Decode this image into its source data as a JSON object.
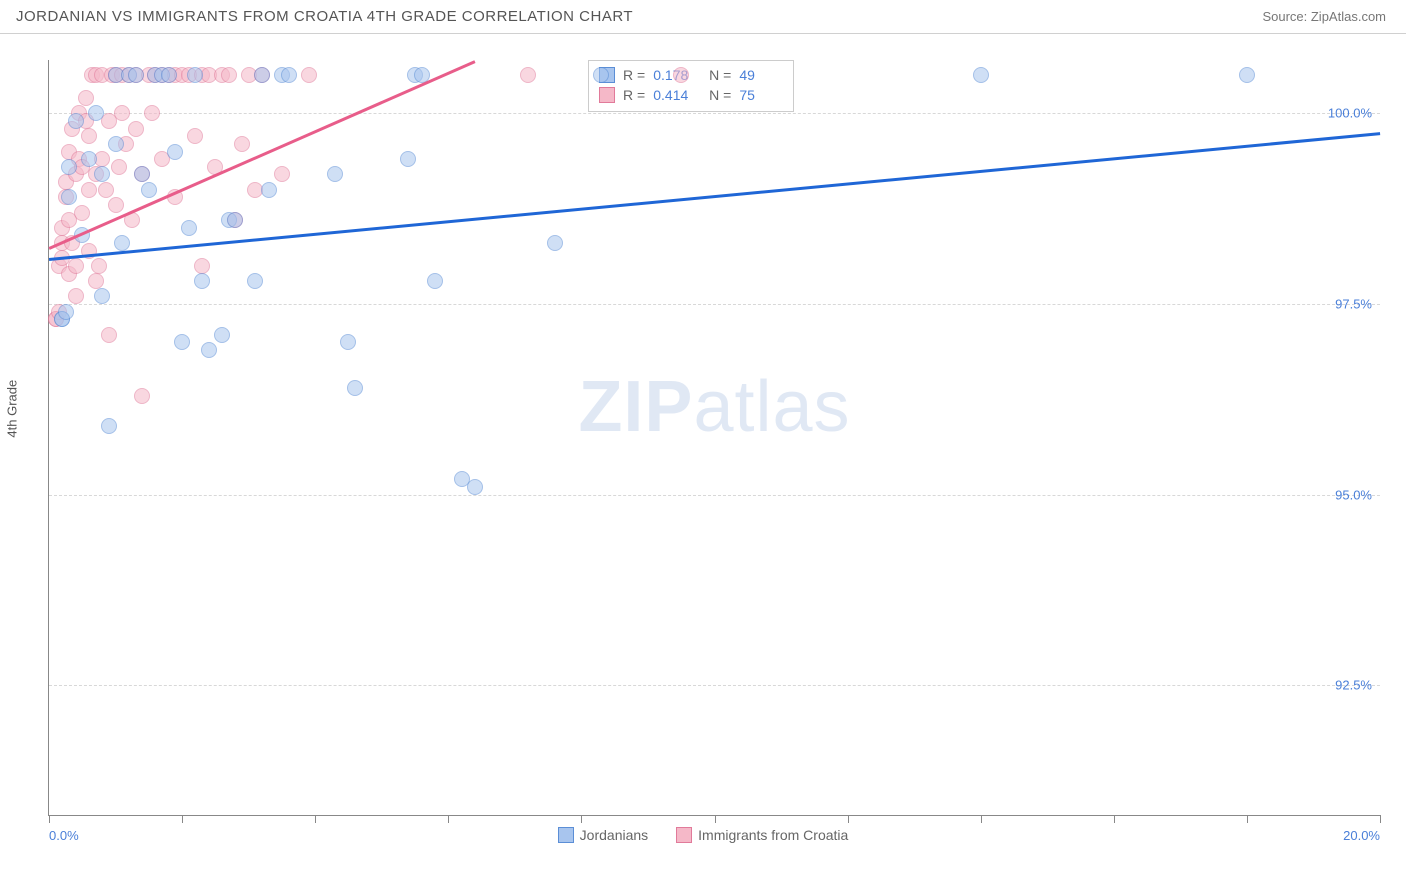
{
  "title": "JORDANIAN VS IMMIGRANTS FROM CROATIA 4TH GRADE CORRELATION CHART",
  "source": "Source: ZipAtlas.com",
  "ylabel": "4th Grade",
  "watermark": {
    "bold": "ZIP",
    "light": "atlas"
  },
  "chart": {
    "type": "scatter",
    "xlim": [
      0.0,
      20.0
    ],
    "ylim": [
      90.8,
      100.7
    ],
    "xticks_pos": [
      0,
      2,
      4,
      6,
      8,
      10,
      12,
      14,
      16,
      18,
      20
    ],
    "xlabels": [
      {
        "v": 0.0,
        "text": "0.0%",
        "align": "left"
      },
      {
        "v": 20.0,
        "text": "20.0%",
        "align": "right"
      }
    ],
    "ylabels": [
      {
        "v": 100.0,
        "text": "100.0%"
      },
      {
        "v": 97.5,
        "text": "97.5%"
      },
      {
        "v": 95.0,
        "text": "95.0%"
      },
      {
        "v": 92.5,
        "text": "92.5%"
      }
    ],
    "grid_color": "#d8d8d8",
    "background_color": "#ffffff",
    "marker_radius": 8,
    "marker_opacity": 0.55,
    "series": [
      {
        "name": "Jordanians",
        "color_fill": "#a8c5ee",
        "color_stroke": "#5b8ed6",
        "R": "0.178",
        "N": "49",
        "trend": {
          "x1": 0.0,
          "y1": 98.1,
          "x2": 20.0,
          "y2": 99.75,
          "color": "#1f66d6",
          "width": 2.5
        },
        "points": [
          [
            0.2,
            97.3
          ],
          [
            0.2,
            97.3
          ],
          [
            0.25,
            97.4
          ],
          [
            0.3,
            98.9
          ],
          [
            0.3,
            99.3
          ],
          [
            0.4,
            99.9
          ],
          [
            0.5,
            98.4
          ],
          [
            0.6,
            99.4
          ],
          [
            0.7,
            100.0
          ],
          [
            0.8,
            97.6
          ],
          [
            0.8,
            99.2
          ],
          [
            0.9,
            95.9
          ],
          [
            1.0,
            100.5
          ],
          [
            1.0,
            99.6
          ],
          [
            1.1,
            98.3
          ],
          [
            1.2,
            100.5
          ],
          [
            1.3,
            100.5
          ],
          [
            1.4,
            99.2
          ],
          [
            1.5,
            99.0
          ],
          [
            1.6,
            100.5
          ],
          [
            1.7,
            100.5
          ],
          [
            1.8,
            100.5
          ],
          [
            1.9,
            99.5
          ],
          [
            2.0,
            97.0
          ],
          [
            2.1,
            98.5
          ],
          [
            2.2,
            100.5
          ],
          [
            2.3,
            97.8
          ],
          [
            2.4,
            96.9
          ],
          [
            2.6,
            97.1
          ],
          [
            2.7,
            98.6
          ],
          [
            2.8,
            98.6
          ],
          [
            3.1,
            97.8
          ],
          [
            3.2,
            100.5
          ],
          [
            3.3,
            99.0
          ],
          [
            3.5,
            100.5
          ],
          [
            3.6,
            100.5
          ],
          [
            4.3,
            99.2
          ],
          [
            4.5,
            97.0
          ],
          [
            4.6,
            96.4
          ],
          [
            5.4,
            99.4
          ],
          [
            5.5,
            100.5
          ],
          [
            5.6,
            100.5
          ],
          [
            5.8,
            97.8
          ],
          [
            6.2,
            95.2
          ],
          [
            6.4,
            95.1
          ],
          [
            7.6,
            98.3
          ],
          [
            8.3,
            100.5
          ],
          [
            14.0,
            100.5
          ],
          [
            18.0,
            100.5
          ]
        ]
      },
      {
        "name": "Immigrants from Croatia",
        "color_fill": "#f5b8c8",
        "color_stroke": "#e17a9a",
        "R": "0.414",
        "N": "75",
        "trend": {
          "x1": 0.0,
          "y1": 98.25,
          "x2": 6.4,
          "y2": 100.7,
          "color": "#e85d8a",
          "width": 2.5
        },
        "points": [
          [
            0.1,
            97.3
          ],
          [
            0.1,
            97.3
          ],
          [
            0.15,
            97.4
          ],
          [
            0.15,
            98.0
          ],
          [
            0.2,
            98.3
          ],
          [
            0.2,
            98.1
          ],
          [
            0.2,
            98.5
          ],
          [
            0.25,
            98.9
          ],
          [
            0.25,
            99.1
          ],
          [
            0.3,
            97.9
          ],
          [
            0.3,
            98.6
          ],
          [
            0.3,
            99.5
          ],
          [
            0.35,
            98.3
          ],
          [
            0.35,
            99.8
          ],
          [
            0.4,
            97.6
          ],
          [
            0.4,
            98.0
          ],
          [
            0.4,
            99.2
          ],
          [
            0.45,
            99.4
          ],
          [
            0.45,
            100.0
          ],
          [
            0.5,
            98.7
          ],
          [
            0.5,
            99.3
          ],
          [
            0.55,
            99.9
          ],
          [
            0.55,
            100.2
          ],
          [
            0.6,
            98.2
          ],
          [
            0.6,
            99.0
          ],
          [
            0.6,
            99.7
          ],
          [
            0.65,
            100.5
          ],
          [
            0.7,
            97.8
          ],
          [
            0.7,
            99.2
          ],
          [
            0.7,
            100.5
          ],
          [
            0.75,
            98.0
          ],
          [
            0.8,
            99.4
          ],
          [
            0.8,
            100.5
          ],
          [
            0.85,
            99.0
          ],
          [
            0.9,
            97.1
          ],
          [
            0.9,
            99.9
          ],
          [
            0.95,
            100.5
          ],
          [
            1.0,
            98.8
          ],
          [
            1.0,
            100.5
          ],
          [
            1.05,
            99.3
          ],
          [
            1.1,
            100.0
          ],
          [
            1.1,
            100.5
          ],
          [
            1.15,
            99.6
          ],
          [
            1.2,
            100.5
          ],
          [
            1.25,
            98.6
          ],
          [
            1.3,
            99.8
          ],
          [
            1.3,
            100.5
          ],
          [
            1.4,
            96.3
          ],
          [
            1.4,
            99.2
          ],
          [
            1.5,
            100.5
          ],
          [
            1.55,
            100.0
          ],
          [
            1.6,
            100.5
          ],
          [
            1.7,
            99.4
          ],
          [
            1.7,
            100.5
          ],
          [
            1.8,
            100.5
          ],
          [
            1.9,
            98.9
          ],
          [
            1.9,
            100.5
          ],
          [
            2.0,
            100.5
          ],
          [
            2.1,
            100.5
          ],
          [
            2.2,
            99.7
          ],
          [
            2.3,
            98.0
          ],
          [
            2.3,
            100.5
          ],
          [
            2.4,
            100.5
          ],
          [
            2.5,
            99.3
          ],
          [
            2.6,
            100.5
          ],
          [
            2.7,
            100.5
          ],
          [
            2.8,
            98.6
          ],
          [
            2.9,
            99.6
          ],
          [
            3.0,
            100.5
          ],
          [
            3.1,
            99.0
          ],
          [
            3.2,
            100.5
          ],
          [
            3.5,
            99.2
          ],
          [
            3.9,
            100.5
          ],
          [
            7.2,
            100.5
          ],
          [
            9.5,
            100.5
          ]
        ]
      }
    ],
    "legend_bottom": [
      {
        "label": "Jordanians",
        "fill": "#a8c5ee",
        "stroke": "#5b8ed6"
      },
      {
        "label": "Immigrants from Croatia",
        "fill": "#f5b8c8",
        "stroke": "#e17a9a"
      }
    ]
  }
}
